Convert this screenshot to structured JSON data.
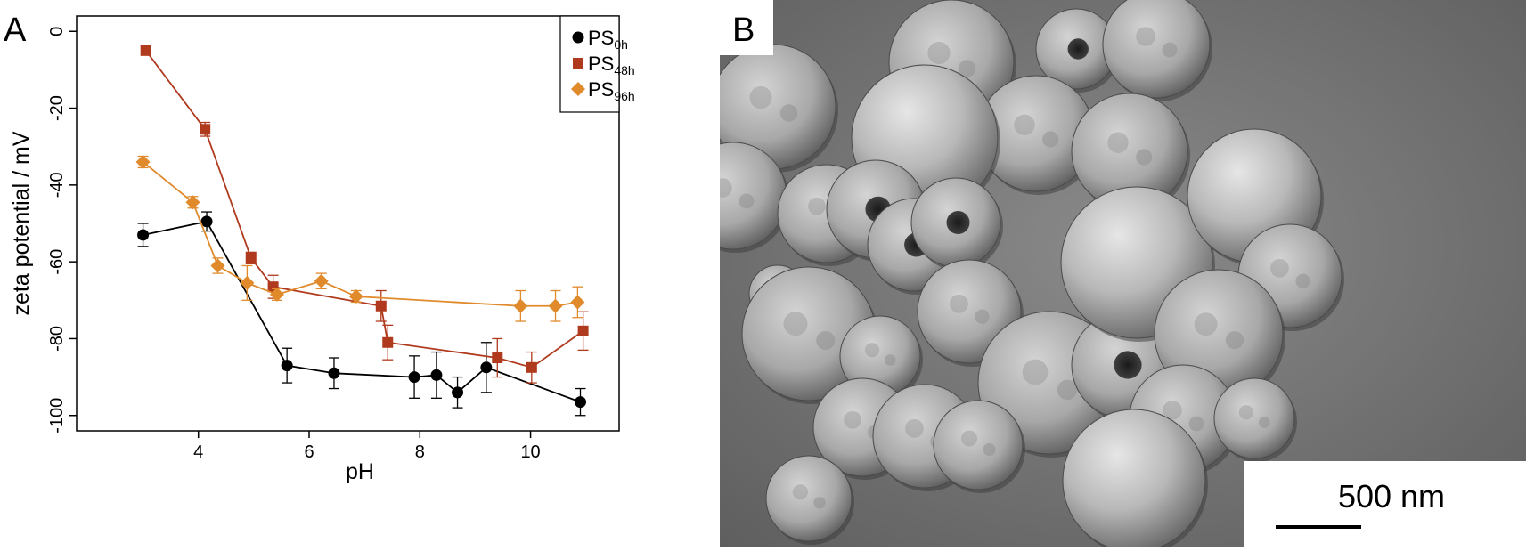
{
  "panel_a": {
    "letter": "A",
    "chart_data": {
      "type": "line",
      "xlabel": "pH",
      "ylabel": "zeta potential / mV",
      "xlim": [
        1.8,
        11.6
      ],
      "ylim": [
        -104,
        4
      ],
      "xticks": [
        4,
        6,
        8,
        10
      ],
      "yticks": [
        0,
        -20,
        -40,
        -60,
        -80,
        -100
      ],
      "grid": false,
      "legend_position": "top-right",
      "series": [
        {
          "name_main": "PS",
          "name_sub": "0h",
          "color": "#000000",
          "marker": "circle",
          "points": [
            {
              "x": 3.0,
              "y": -53,
              "err": 3
            },
            {
              "x": 4.15,
              "y": -49.5,
              "err": 2.5
            },
            {
              "x": 5.6,
              "y": -87,
              "err": 4.5
            },
            {
              "x": 6.45,
              "y": -89,
              "err": 4
            },
            {
              "x": 7.9,
              "y": -90,
              "err": 5.5
            },
            {
              "x": 8.3,
              "y": -89.5,
              "err": 6
            },
            {
              "x": 8.68,
              "y": -94,
              "err": 4
            },
            {
              "x": 9.2,
              "y": -87.5,
              "err": 6.5
            },
            {
              "x": 10.9,
              "y": -96.5,
              "err": 3.5
            }
          ]
        },
        {
          "name_main": "PS",
          "name_sub": "48h",
          "color": "#B03A1E",
          "marker": "square",
          "points": [
            {
              "x": 3.05,
              "y": -5,
              "err": 0
            },
            {
              "x": 4.12,
              "y": -25.5,
              "err": 1.8
            },
            {
              "x": 4.95,
              "y": -59,
              "err": 1.5
            },
            {
              "x": 5.35,
              "y": -66.5,
              "err": 3
            },
            {
              "x": 7.3,
              "y": -71.5,
              "err": 4
            },
            {
              "x": 7.42,
              "y": -81,
              "err": 4.5
            },
            {
              "x": 9.4,
              "y": -85,
              "err": 5
            },
            {
              "x": 10.02,
              "y": -87.5,
              "err": 4
            },
            {
              "x": 10.95,
              "y": -78,
              "err": 5
            }
          ]
        },
        {
          "name_main": "PS",
          "name_sub": "96h",
          "color": "#E08A2C",
          "marker": "diamond",
          "points": [
            {
              "x": 3.0,
              "y": -34,
              "err": 1.5
            },
            {
              "x": 3.9,
              "y": -44.5,
              "err": 1.5
            },
            {
              "x": 4.35,
              "y": -61,
              "err": 2
            },
            {
              "x": 4.88,
              "y": -65.5,
              "err": 4.5
            },
            {
              "x": 5.42,
              "y": -68.5,
              "err": 1.5
            },
            {
              "x": 6.22,
              "y": -65,
              "err": 2
            },
            {
              "x": 6.85,
              "y": -69,
              "err": 1.5
            },
            {
              "x": 9.82,
              "y": -71.5,
              "err": 4
            },
            {
              "x": 10.45,
              "y": -71.5,
              "err": 4
            },
            {
              "x": 10.85,
              "y": -70.5,
              "err": 4
            }
          ]
        }
      ]
    }
  },
  "panel_b": {
    "letter": "B",
    "scale_bar_label": "500 nm",
    "scale_bar_nm": 500
  }
}
